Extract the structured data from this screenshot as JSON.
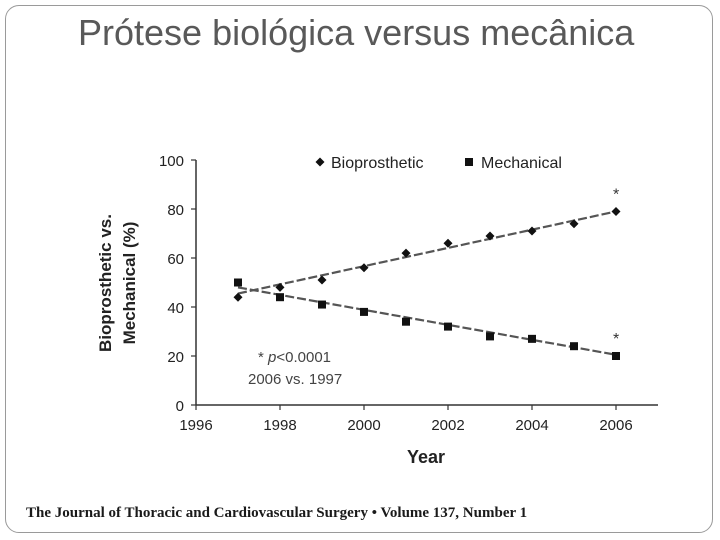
{
  "slide": {
    "title": "Prótese biológica versus mecânica",
    "caption": "The Journal of Thoracic and Cardiovascular Surgery • Volume 137, Number 1"
  },
  "chart_data": {
    "type": "scatter",
    "title": "",
    "xlabel": "Year",
    "ylabel_line1": "Bioprosthetic vs.",
    "ylabel_line2": "Mechanical (%)",
    "xlim": [
      1996,
      2007
    ],
    "ylim": [
      0,
      100
    ],
    "x_ticks": [
      1996,
      1998,
      2000,
      2002,
      2004,
      2006
    ],
    "y_ticks": [
      0,
      20,
      40,
      60,
      80,
      100
    ],
    "x": [
      1997,
      1998,
      1999,
      2000,
      2001,
      2002,
      2003,
      2004,
      2005,
      2006
    ],
    "series": [
      {
        "name": "Bioprosthetic",
        "marker": "diamond",
        "values": [
          44,
          48,
          51,
          56,
          62,
          66,
          69,
          71,
          74,
          79
        ],
        "trend": [
          45.5,
          79
        ]
      },
      {
        "name": "Mechanical",
        "marker": "square",
        "values": [
          50,
          44,
          41,
          38,
          34,
          32,
          28,
          27,
          24,
          20
        ],
        "trend": [
          48,
          20.5
        ]
      }
    ],
    "significance_marker": "*",
    "annotation_p_star": "* ",
    "annotation_p_letter": "p",
    "annotation_p_value": "<0.0001",
    "annotation_line2": "2006 vs. 1997",
    "legend_position": "top",
    "colors": {
      "series": "#111111",
      "trend": "#8a8a8a",
      "axis": "#333333",
      "text": "#222222"
    }
  }
}
